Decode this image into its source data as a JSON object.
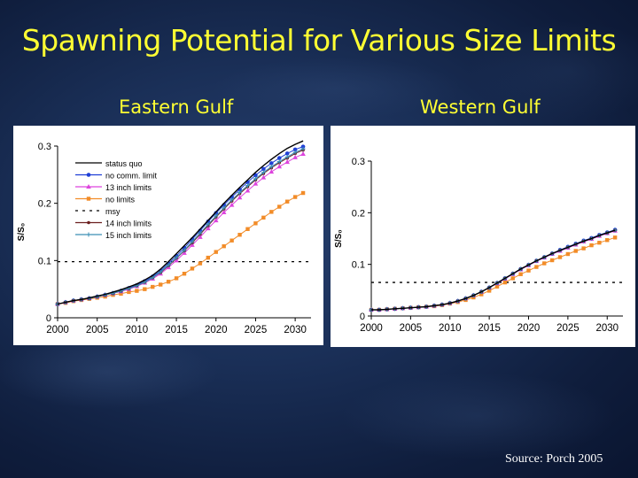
{
  "title": "Spawning Potential for Various Size Limits",
  "source": "Source: Porch 2005",
  "chart_data": [
    {
      "type": "line",
      "panel_title": "Eastern Gulf",
      "ylabel": "S/S₀",
      "xlabel": "",
      "xlim": [
        2000,
        2032
      ],
      "ylim": [
        0,
        0.3
      ],
      "x_ticks": [
        "2000",
        "2005",
        "2010",
        "2015",
        "2020",
        "2025",
        "2030"
      ],
      "y_ticks": [
        "0",
        "0.1",
        "0.2",
        "0.3"
      ],
      "legend_position": "top-left",
      "x": [
        2000,
        2001,
        2002,
        2003,
        2004,
        2005,
        2006,
        2007,
        2008,
        2009,
        2010,
        2011,
        2012,
        2013,
        2014,
        2015,
        2016,
        2017,
        2018,
        2019,
        2020,
        2021,
        2022,
        2023,
        2024,
        2025,
        2026,
        2027,
        2028,
        2029,
        2030,
        2031
      ],
      "msy": 0.098,
      "series": [
        {
          "name": "status quo",
          "color": "#000000",
          "marker": "none",
          "dash": "",
          "values": [
            0.024,
            0.027,
            0.03,
            0.032,
            0.035,
            0.038,
            0.041,
            0.045,
            0.049,
            0.054,
            0.059,
            0.066,
            0.074,
            0.085,
            0.098,
            0.112,
            0.126,
            0.14,
            0.155,
            0.17,
            0.185,
            0.2,
            0.214,
            0.228,
            0.241,
            0.254,
            0.266,
            0.277,
            0.287,
            0.296,
            0.303,
            0.309
          ]
        },
        {
          "name": "no comm. limit",
          "color": "#1f3fd6",
          "marker": "circle",
          "dash": "",
          "values": [
            0.024,
            0.027,
            0.03,
            0.032,
            0.034,
            0.037,
            0.04,
            0.043,
            0.047,
            0.052,
            0.057,
            0.064,
            0.072,
            0.082,
            0.095,
            0.108,
            0.122,
            0.137,
            0.152,
            0.168,
            0.183,
            0.197,
            0.211,
            0.224,
            0.237,
            0.249,
            0.26,
            0.27,
            0.279,
            0.287,
            0.294,
            0.299
          ]
        },
        {
          "name": "13 inch limits",
          "color": "#dd44dd",
          "marker": "triangle",
          "dash": "",
          "values": [
            0.024,
            0.027,
            0.03,
            0.032,
            0.034,
            0.037,
            0.04,
            0.043,
            0.046,
            0.05,
            0.055,
            0.061,
            0.068,
            0.077,
            0.088,
            0.1,
            0.113,
            0.127,
            0.141,
            0.156,
            0.17,
            0.184,
            0.197,
            0.21,
            0.222,
            0.234,
            0.245,
            0.255,
            0.264,
            0.272,
            0.28,
            0.286
          ]
        },
        {
          "name": "no limits",
          "color": "#f28c28",
          "marker": "square",
          "dash": "",
          "values": [
            0.024,
            0.026,
            0.029,
            0.031,
            0.033,
            0.035,
            0.037,
            0.04,
            0.042,
            0.045,
            0.047,
            0.05,
            0.054,
            0.058,
            0.063,
            0.069,
            0.077,
            0.086,
            0.095,
            0.105,
            0.115,
            0.125,
            0.135,
            0.145,
            0.155,
            0.165,
            0.175,
            0.185,
            0.194,
            0.203,
            0.211,
            0.218
          ]
        },
        {
          "name": "msy",
          "color": "#000000",
          "marker": "none",
          "dash": "3,5",
          "kind": "hline"
        },
        {
          "name": "14 inch limits",
          "color": "#6b1f1f",
          "marker": "circle-small",
          "dash": "",
          "values": [
            0.024,
            0.027,
            0.03,
            0.032,
            0.034,
            0.037,
            0.04,
            0.043,
            0.047,
            0.051,
            0.056,
            0.062,
            0.07,
            0.079,
            0.091,
            0.104,
            0.117,
            0.131,
            0.146,
            0.161,
            0.176,
            0.19,
            0.204,
            0.217,
            0.229,
            0.241,
            0.252,
            0.262,
            0.271,
            0.279,
            0.287,
            0.293
          ]
        },
        {
          "name": "15 inch limits",
          "color": "#3a8fb5",
          "marker": "plus",
          "dash": "",
          "values": [
            0.024,
            0.027,
            0.03,
            0.032,
            0.034,
            0.037,
            0.04,
            0.043,
            0.047,
            0.051,
            0.056,
            0.062,
            0.07,
            0.08,
            0.092,
            0.105,
            0.118,
            0.133,
            0.148,
            0.163,
            0.178,
            0.192,
            0.206,
            0.219,
            0.231,
            0.243,
            0.254,
            0.264,
            0.273,
            0.281,
            0.289,
            0.295
          ]
        }
      ]
    },
    {
      "type": "line",
      "panel_title": "Western Gulf",
      "ylabel": "S/S₀",
      "xlabel": "",
      "xlim": [
        2000,
        2032
      ],
      "ylim": [
        0,
        0.3
      ],
      "x_ticks": [
        "2000",
        "2005",
        "2010",
        "2015",
        "2020",
        "2025",
        "2030"
      ],
      "y_ticks": [
        "0",
        "0.1",
        "0.2",
        "0.3"
      ],
      "legend_position": "none",
      "x": [
        2000,
        2001,
        2002,
        2003,
        2004,
        2005,
        2006,
        2007,
        2008,
        2009,
        2010,
        2011,
        2012,
        2013,
        2014,
        2015,
        2016,
        2017,
        2018,
        2019,
        2020,
        2021,
        2022,
        2023,
        2024,
        2025,
        2026,
        2027,
        2028,
        2029,
        2030,
        2031
      ],
      "msy": 0.065,
      "series": [
        {
          "name": "status quo",
          "color": "#000000",
          "marker": "none",
          "dash": "",
          "values": [
            0.012,
            0.012,
            0.013,
            0.014,
            0.015,
            0.016,
            0.017,
            0.018,
            0.02,
            0.022,
            0.025,
            0.029,
            0.034,
            0.04,
            0.047,
            0.055,
            0.064,
            0.073,
            0.082,
            0.091,
            0.099,
            0.107,
            0.114,
            0.121,
            0.127,
            0.133,
            0.139,
            0.145,
            0.15,
            0.156,
            0.161,
            0.166
          ]
        },
        {
          "name": "no comm. limit",
          "color": "#1f3fd6",
          "marker": "circle",
          "dash": "",
          "values": [
            0.012,
            0.012,
            0.013,
            0.014,
            0.015,
            0.016,
            0.017,
            0.018,
            0.02,
            0.022,
            0.025,
            0.029,
            0.034,
            0.04,
            0.047,
            0.055,
            0.064,
            0.073,
            0.082,
            0.091,
            0.099,
            0.107,
            0.114,
            0.121,
            0.128,
            0.134,
            0.14,
            0.146,
            0.151,
            0.157,
            0.162,
            0.167
          ]
        },
        {
          "name": "13 inch limits",
          "color": "#dd44dd",
          "marker": "triangle",
          "dash": "",
          "values": [
            0.012,
            0.012,
            0.013,
            0.014,
            0.015,
            0.016,
            0.017,
            0.018,
            0.02,
            0.022,
            0.025,
            0.029,
            0.034,
            0.04,
            0.047,
            0.055,
            0.063,
            0.072,
            0.081,
            0.09,
            0.098,
            0.106,
            0.113,
            0.12,
            0.126,
            0.132,
            0.138,
            0.144,
            0.149,
            0.155,
            0.16,
            0.165
          ]
        },
        {
          "name": "no limits",
          "color": "#f28c28",
          "marker": "square",
          "dash": "",
          "values": [
            0.012,
            0.012,
            0.013,
            0.014,
            0.015,
            0.016,
            0.017,
            0.018,
            0.019,
            0.021,
            0.024,
            0.027,
            0.031,
            0.036,
            0.042,
            0.049,
            0.057,
            0.065,
            0.073,
            0.081,
            0.088,
            0.095,
            0.102,
            0.108,
            0.114,
            0.12,
            0.126,
            0.131,
            0.137,
            0.142,
            0.147,
            0.152
          ]
        },
        {
          "name": "msy",
          "color": "#000000",
          "marker": "none",
          "dash": "3,5",
          "kind": "hline"
        },
        {
          "name": "14 inch limits",
          "color": "#6b1f1f",
          "marker": "circle-small",
          "dash": "",
          "values": [
            0.012,
            0.012,
            0.013,
            0.014,
            0.015,
            0.016,
            0.017,
            0.018,
            0.02,
            0.022,
            0.025,
            0.029,
            0.034,
            0.04,
            0.047,
            0.055,
            0.064,
            0.073,
            0.082,
            0.091,
            0.099,
            0.107,
            0.114,
            0.121,
            0.127,
            0.133,
            0.139,
            0.145,
            0.15,
            0.156,
            0.161,
            0.166
          ]
        },
        {
          "name": "15 inch limits",
          "color": "#3a8fb5",
          "marker": "plus",
          "dash": "",
          "values": [
            0.012,
            0.012,
            0.013,
            0.014,
            0.015,
            0.016,
            0.017,
            0.018,
            0.02,
            0.022,
            0.025,
            0.029,
            0.034,
            0.04,
            0.047,
            0.055,
            0.064,
            0.073,
            0.082,
            0.091,
            0.099,
            0.107,
            0.114,
            0.121,
            0.127,
            0.133,
            0.139,
            0.145,
            0.15,
            0.156,
            0.161,
            0.166
          ]
        }
      ]
    }
  ]
}
